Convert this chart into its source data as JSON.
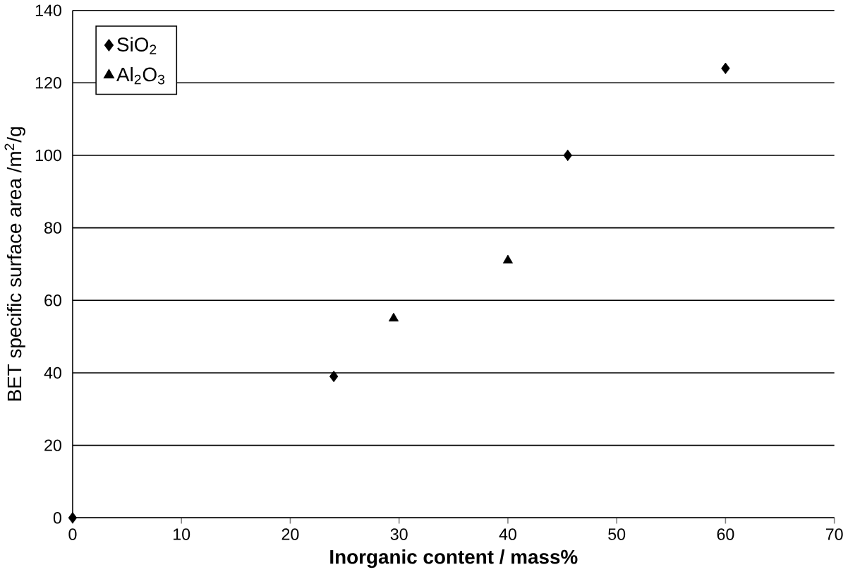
{
  "chart_data": {
    "type": "scatter",
    "xlabel": "Inorganic content / mass%",
    "ylabel": "BET  specific  surface area  /m$^{2}$/g",
    "series": [
      {
        "name": "SiO$_{2}$",
        "color": "#000000",
        "marker": "diamond",
        "x": [
          0,
          24,
          45.5,
          60
        ],
        "values": [
          0,
          39,
          100,
          124
        ]
      },
      {
        "name": "Al$_{2}$O$_{3}$",
        "color": "#000000",
        "marker": "triangle",
        "x": [
          29.5,
          40
        ],
        "values": [
          55,
          71
        ]
      }
    ],
    "xlim": [
      0,
      70
    ],
    "xticks": [
      0,
      10,
      20,
      30,
      40,
      50,
      60,
      70
    ],
    "ylim": [
      0,
      140
    ],
    "yticks": [
      0,
      20,
      40,
      60,
      80,
      100,
      120,
      140
    ],
    "grid": "y",
    "legend": "top left"
  }
}
